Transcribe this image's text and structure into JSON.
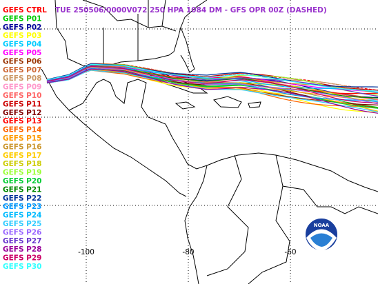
{
  "title": "TUE 250506/0000V072 250 HPA 1084 DM - GFS OPR 00Z (DASHED)",
  "title_color": "#9933cc",
  "members": [
    {
      "name": "GEFS CTRL",
      "color": "#ff0000"
    },
    {
      "name": "GEFS P01",
      "color": "#00cc00"
    },
    {
      "name": "GEFS P02",
      "color": "#000099"
    },
    {
      "name": "GEFS P03",
      "color": "#ffff00"
    },
    {
      "name": "GEFS P04",
      "color": "#00ccff"
    },
    {
      "name": "GEFS P05",
      "color": "#ff00ff"
    },
    {
      "name": "GEFS P06",
      "color": "#993300"
    },
    {
      "name": "GEFS P07",
      "color": "#cc6633"
    },
    {
      "name": "GEFS P08",
      "color": "#cc9966"
    },
    {
      "name": "GEFS P09",
      "color": "#ff99cc"
    },
    {
      "name": "GEFS P10",
      "color": "#ff6666"
    },
    {
      "name": "GEFS P11",
      "color": "#cc0000"
    },
    {
      "name": "GEFS P12",
      "color": "#800000"
    },
    {
      "name": "GEFS P13",
      "color": "#ff0000"
    },
    {
      "name": "GEFS P14",
      "color": "#ff6600"
    },
    {
      "name": "GEFS P15",
      "color": "#ff9900"
    },
    {
      "name": "GEFS P16",
      "color": "#cc9933"
    },
    {
      "name": "GEFS P17",
      "color": "#ffcc00"
    },
    {
      "name": "GEFS P18",
      "color": "#cccc00"
    },
    {
      "name": "GEFS P19",
      "color": "#99ff33"
    },
    {
      "name": "GEFS P20",
      "color": "#00cc33"
    },
    {
      "name": "GEFS P21",
      "color": "#008800"
    },
    {
      "name": "GEFS P22",
      "color": "#003399"
    },
    {
      "name": "GEFS P23",
      "color": "#0099ff"
    },
    {
      "name": "GEFS P24",
      "color": "#00bbff"
    },
    {
      "name": "GEFS P25",
      "color": "#33ccff"
    },
    {
      "name": "GEFS P26",
      "color": "#9966ff"
    },
    {
      "name": "GEFS P27",
      "color": "#6633cc"
    },
    {
      "name": "GEFS P28",
      "color": "#990099"
    },
    {
      "name": "GEFS P29",
      "color": "#cc0066"
    },
    {
      "name": "GEFS P30",
      "color": "#33ffff"
    }
  ],
  "lon_ticks": [
    -100,
    -80,
    -60
  ]
}
